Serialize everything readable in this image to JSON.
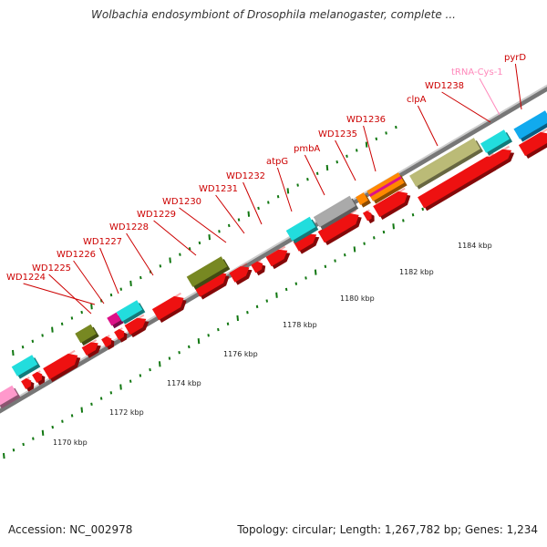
{
  "title": "Wolbachia endosymbiont of Drosophila melanogaster, complete ...",
  "footer": {
    "accession": "Accession: NC_002978",
    "summary": "Topology: circular; Length: 1,267,782 bp; Genes: 1,234"
  },
  "colors": {
    "cds": "#ee1111",
    "cds_side": "#990000",
    "trna": "#ff99cc",
    "rna_cyan": "#22dddd",
    "olive": "#778822",
    "khaki": "#bbbb77",
    "gray": "#aaaaaa",
    "blue": "#11aaee",
    "magenta": "#dd1188",
    "orange": "#ff8800",
    "backbone": "#999999",
    "tick": "#117711",
    "label_gene": "#cc0000",
    "label_trna": "#ff88bb"
  },
  "kbp_labels": [
    "1170 kbp",
    "1172 kbp",
    "1174 kbp",
    "1176 kbp",
    "1178 kbp",
    "1180 kbp",
    "1182 kbp",
    "1184 kbp"
  ],
  "gene_labels": [
    {
      "text": "WD1224",
      "kind": "gene"
    },
    {
      "text": "WD1225",
      "kind": "gene"
    },
    {
      "text": "WD1226",
      "kind": "gene"
    },
    {
      "text": "WD1227",
      "kind": "gene"
    },
    {
      "text": "WD1228",
      "kind": "gene"
    },
    {
      "text": "WD1229",
      "kind": "gene"
    },
    {
      "text": "WD1230",
      "kind": "gene"
    },
    {
      "text": "WD1231",
      "kind": "gene"
    },
    {
      "text": "WD1232",
      "kind": "gene"
    },
    {
      "text": "atpG",
      "kind": "gene"
    },
    {
      "text": "pmbA",
      "kind": "gene"
    },
    {
      "text": "WD1235",
      "kind": "gene"
    },
    {
      "text": "WD1236",
      "kind": "gene"
    },
    {
      "text": "clpA",
      "kind": "gene"
    },
    {
      "text": "WD1238",
      "kind": "gene"
    },
    {
      "text": "tRNA-Cys-1",
      "kind": "trna"
    },
    {
      "text": "pyrD",
      "kind": "gene"
    }
  ]
}
